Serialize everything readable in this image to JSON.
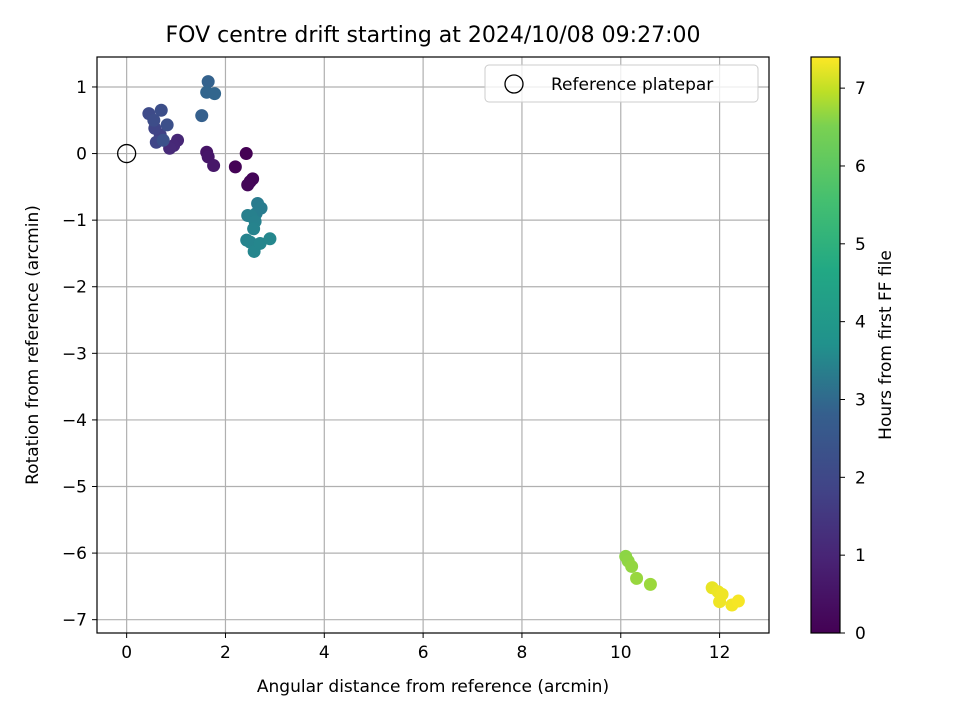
{
  "chart_data": {
    "type": "scatter",
    "title": "FOV centre drift starting at 2024/10/08 09:27:00",
    "xlabel": "Angular distance from reference (arcmin)",
    "ylabel": "Rotation from reference (arcmin)",
    "xlim": [
      -0.6,
      13.0
    ],
    "ylim": [
      -7.2,
      1.45
    ],
    "xticks": [
      0,
      2,
      4,
      6,
      8,
      10,
      12
    ],
    "yticks": [
      1,
      0,
      -1,
      -2,
      -3,
      -4,
      -5,
      -6,
      -7
    ],
    "grid": true,
    "legend": {
      "position": "top-right",
      "entries": [
        "Reference platepar"
      ]
    },
    "reference_point": {
      "name": "Reference platepar",
      "x": 0,
      "y": 0
    },
    "colorbar": {
      "label": "Hours from first FF file",
      "colormap": "viridis",
      "range": [
        0,
        7.4
      ],
      "ticks": [
        0,
        1,
        2,
        3,
        4,
        5,
        6,
        7
      ]
    },
    "points": [
      {
        "x": 2.42,
        "y": 0.0,
        "hours": 0.0
      },
      {
        "x": 2.2,
        "y": -0.2,
        "hours": 0.05
      },
      {
        "x": 2.55,
        "y": -0.38,
        "hours": 0.1
      },
      {
        "x": 2.5,
        "y": -0.42,
        "hours": 0.1
      },
      {
        "x": 2.45,
        "y": -0.47,
        "hours": 0.15
      },
      {
        "x": 1.62,
        "y": 0.02,
        "hours": 0.5
      },
      {
        "x": 1.65,
        "y": -0.05,
        "hours": 0.55
      },
      {
        "x": 1.76,
        "y": -0.18,
        "hours": 0.6
      },
      {
        "x": 1.03,
        "y": 0.2,
        "hours": 1.0
      },
      {
        "x": 0.95,
        "y": 0.12,
        "hours": 1.05
      },
      {
        "x": 0.87,
        "y": 0.08,
        "hours": 1.1
      },
      {
        "x": 0.68,
        "y": 0.28,
        "hours": 1.8
      },
      {
        "x": 0.57,
        "y": 0.38,
        "hours": 1.9
      },
      {
        "x": 0.6,
        "y": 0.17,
        "hours": 1.95
      },
      {
        "x": 0.45,
        "y": 0.6,
        "hours": 2.1
      },
      {
        "x": 0.55,
        "y": 0.5,
        "hours": 2.15
      },
      {
        "x": 0.7,
        "y": 0.65,
        "hours": 2.2
      },
      {
        "x": 0.82,
        "y": 0.43,
        "hours": 2.25
      },
      {
        "x": 0.74,
        "y": 0.2,
        "hours": 2.3
      },
      {
        "x": 1.52,
        "y": 0.57,
        "hours": 2.8
      },
      {
        "x": 1.65,
        "y": 1.08,
        "hours": 2.9
      },
      {
        "x": 1.62,
        "y": 0.92,
        "hours": 3.0
      },
      {
        "x": 1.78,
        "y": 0.9,
        "hours": 3.05
      },
      {
        "x": 2.65,
        "y": -0.75,
        "hours": 3.8
      },
      {
        "x": 2.72,
        "y": -0.82,
        "hours": 3.85
      },
      {
        "x": 2.62,
        "y": -0.9,
        "hours": 3.9
      },
      {
        "x": 2.45,
        "y": -0.93,
        "hours": 3.95
      },
      {
        "x": 2.52,
        "y": -0.94,
        "hours": 4.0
      },
      {
        "x": 2.6,
        "y": -1.02,
        "hours": 4.05
      },
      {
        "x": 2.57,
        "y": -1.13,
        "hours": 4.1
      },
      {
        "x": 2.43,
        "y": -1.3,
        "hours": 4.1
      },
      {
        "x": 2.5,
        "y": -1.33,
        "hours": 4.15
      },
      {
        "x": 2.58,
        "y": -1.47,
        "hours": 4.2
      },
      {
        "x": 2.7,
        "y": -1.35,
        "hours": 4.2
      },
      {
        "x": 2.9,
        "y": -1.28,
        "hours": 4.25
      },
      {
        "x": 10.1,
        "y": -6.05,
        "hours": 6.6
      },
      {
        "x": 10.15,
        "y": -6.12,
        "hours": 6.62
      },
      {
        "x": 10.22,
        "y": -6.2,
        "hours": 6.65
      },
      {
        "x": 10.32,
        "y": -6.38,
        "hours": 6.68
      },
      {
        "x": 10.6,
        "y": -6.47,
        "hours": 6.7
      },
      {
        "x": 11.85,
        "y": -6.52,
        "hours": 7.25
      },
      {
        "x": 11.97,
        "y": -6.58,
        "hours": 7.28
      },
      {
        "x": 12.05,
        "y": -6.62,
        "hours": 7.3
      },
      {
        "x": 12.0,
        "y": -6.73,
        "hours": 7.3
      },
      {
        "x": 12.25,
        "y": -6.78,
        "hours": 7.33
      },
      {
        "x": 12.38,
        "y": -6.72,
        "hours": 7.35
      }
    ]
  }
}
